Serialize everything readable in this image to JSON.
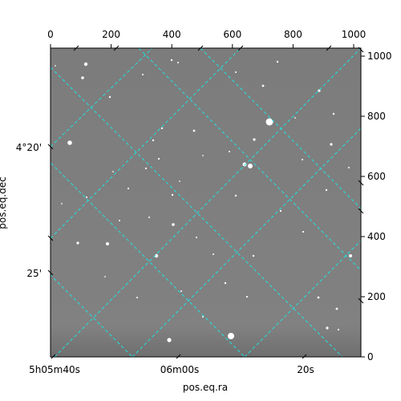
{
  "chart_data": {
    "type": "image",
    "image_desc": "grayscale astronomical image with stars and WCS coordinate grid",
    "pixel_axes": {
      "x": {
        "range": [
          0,
          1024
        ],
        "ticks": [
          "0",
          "200",
          "400",
          "600",
          "800",
          "1000"
        ],
        "location": "top"
      },
      "y": {
        "range": [
          0,
          1024
        ],
        "ticks": [
          "0",
          "200",
          "400",
          "600",
          "800",
          "1000"
        ],
        "location": "right"
      }
    },
    "world_axes": {
      "ra": {
        "label": "pos.eq.ra",
        "ticks": [
          "5h05m40s",
          "06m00s",
          "20s"
        ],
        "location": "bottom"
      },
      "dec": {
        "label": "pos.eq.dec",
        "ticks": [
          "4°20'",
          "25'"
        ],
        "location": "left"
      }
    },
    "grid": true,
    "colors": {
      "grid": "#22e0e0",
      "background_gray": "#808080",
      "frame": "#000000"
    }
  }
}
